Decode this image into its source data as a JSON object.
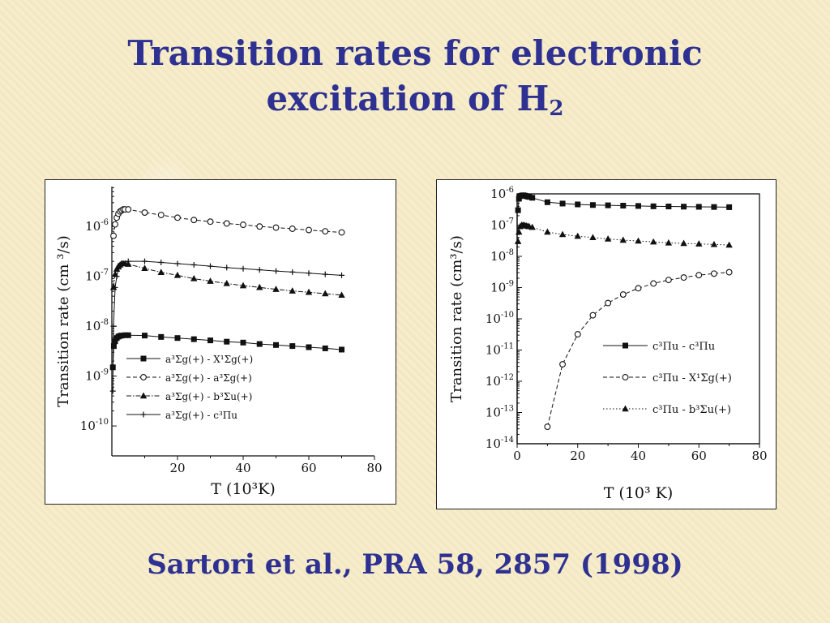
{
  "slide": {
    "title_line1": "Transition rates for electronic",
    "title_line2_main": "excitation of H",
    "title_line2_sub": "2",
    "citation": "Sartori et al., PRA 58, 2857 (1998)"
  },
  "colors": {
    "title": "#2e3192",
    "background": "#f6ecc9",
    "ink": "#111111"
  },
  "chart_data": [
    {
      "type": "line",
      "xlabel": "T  (10³K)",
      "ylabel": "Transition rate (cm ³/s)",
      "xlim": [
        0,
        80
      ],
      "ylim_log10": [
        -10.6,
        -5.2
      ],
      "yscale": "log",
      "x_ticks": [
        "20",
        "40",
        "60",
        "80"
      ],
      "y_ticks": [
        "10-10",
        "10-9",
        "10-8",
        "10-7",
        "10-6"
      ],
      "legend_position": "bottom-right",
      "series": [
        {
          "name": "a³Σg(+) - X¹Σg(+)",
          "marker": "square",
          "line": "solid",
          "x": [
            0.3,
            0.6,
            1,
            1.5,
            2,
            2.5,
            3,
            4,
            5,
            10,
            15,
            20,
            25,
            30,
            35,
            40,
            45,
            50,
            55,
            60,
            65,
            70
          ],
          "y": [
            1.5e-09,
            4e-09,
            5e-09,
            5.8e-09,
            6.2e-09,
            6.4e-09,
            6.5e-09,
            6.6e-09,
            6.6e-09,
            6.5e-09,
            6.1e-09,
            5.8e-09,
            5.5e-09,
            5.2e-09,
            4.9e-09,
            4.7e-09,
            4.4e-09,
            4.2e-09,
            4e-09,
            3.8e-09,
            3.6e-09,
            3.4e-09
          ]
        },
        {
          "name": "a³Σg(+) - a³Σg(+)",
          "marker": "circle",
          "line": "dashed",
          "x": [
            0.5,
            1,
            1.5,
            2,
            2.5,
            3,
            3.5,
            4,
            5,
            10,
            15,
            20,
            25,
            30,
            35,
            40,
            45,
            50,
            55,
            60,
            65,
            70
          ],
          "y": [
            6.5e-07,
            1.1e-06,
            1.5e-06,
            1.8e-06,
            2e-06,
            2.1e-06,
            2.2e-06,
            2.2e-06,
            2.2e-06,
            1.9e-06,
            1.7e-06,
            1.5e-06,
            1.35e-06,
            1.25e-06,
            1.15e-06,
            1.08e-06,
            1e-06,
            9.5e-07,
            9e-07,
            8.5e-07,
            8e-07,
            7.6e-07
          ]
        },
        {
          "name": "a³Σg(+) - b³Σu(+)",
          "marker": "triangle",
          "line": "dash-dot",
          "x": [
            0.5,
            1,
            1.5,
            2,
            2.5,
            3,
            3.5,
            4,
            5,
            10,
            15,
            20,
            25,
            30,
            35,
            40,
            45,
            50,
            55,
            60,
            65,
            70
          ],
          "y": [
            6e-08,
            1.1e-07,
            1.4e-07,
            1.6e-07,
            1.7e-07,
            1.8e-07,
            1.8e-07,
            1.8e-07,
            1.75e-07,
            1.45e-07,
            1.2e-07,
            1.05e-07,
            9e-08,
            8e-08,
            7.2e-08,
            6.5e-08,
            6e-08,
            5.5e-08,
            5.1e-08,
            4.8e-08,
            4.5e-08,
            4.2e-08
          ]
        },
        {
          "name": "a³Σg(+) - c³Πu",
          "marker": "plus",
          "line": "solid",
          "x": [
            0.3,
            0.5,
            1,
            1.5,
            2,
            3,
            5,
            10,
            15,
            20,
            25,
            30,
            35,
            40,
            45,
            50,
            55,
            60,
            65,
            70
          ],
          "y": [
            5e-10,
            1e-08,
            6e-08,
            1e-07,
            1.4e-07,
            1.8e-07,
            2e-07,
            2e-07,
            1.9e-07,
            1.8e-07,
            1.7e-07,
            1.6e-07,
            1.5e-07,
            1.42e-07,
            1.35e-07,
            1.28e-07,
            1.22e-07,
            1.16e-07,
            1.1e-07,
            1.05e-07
          ]
        }
      ]
    },
    {
      "type": "line",
      "xlabel": "T (10³ K)",
      "ylabel": "Transition rate (cm³/s)",
      "xlim": [
        0,
        80
      ],
      "ylim_log10": [
        -14,
        -6
      ],
      "yscale": "log",
      "x_ticks": [
        "0",
        "20",
        "40",
        "60",
        "80"
      ],
      "y_ticks": [
        "10-14",
        "10-13",
        "10-12",
        "10-11",
        "10-10",
        "10-9",
        "10-8",
        "10-7",
        "10-6"
      ],
      "legend_position": "center-right",
      "series": [
        {
          "name": "c³Πu - c³Πu",
          "marker": "square",
          "line": "solid",
          "x": [
            0.3,
            0.6,
            1,
            1.5,
            2,
            2.5,
            3,
            3.5,
            4,
            5,
            10,
            15,
            20,
            25,
            30,
            35,
            40,
            45,
            50,
            55,
            60,
            65,
            70
          ],
          "y": [
            3e-07,
            7e-07,
            8.5e-07,
            8.8e-07,
            9e-07,
            8.8e-07,
            8.5e-07,
            8.2e-07,
            8e-07,
            7.5e-07,
            5.4e-07,
            4.9e-07,
            4.6e-07,
            4.4e-07,
            4.3e-07,
            4.2e-07,
            4.1e-07,
            4e-07,
            3.95e-07,
            3.9e-07,
            3.85e-07,
            3.8e-07,
            3.75e-07
          ]
        },
        {
          "name": "c³Πu - X¹Σg(+)",
          "marker": "circle",
          "line": "dashed",
          "x": [
            10,
            15,
            20,
            25,
            30,
            35,
            40,
            45,
            50,
            55,
            60,
            65,
            70
          ],
          "y": [
            3.5e-14,
            3.5e-12,
            3.2e-11,
            1.3e-10,
            3.2e-10,
            6e-10,
            9.5e-10,
            1.35e-09,
            1.75e-09,
            2.1e-09,
            2.5e-09,
            2.8e-09,
            3.1e-09
          ]
        },
        {
          "name": "c³Πu - b³Σu(+)",
          "marker": "triangle",
          "line": "dotted",
          "x": [
            0.3,
            0.6,
            1,
            1.5,
            2,
            2.5,
            3,
            3.5,
            4,
            5,
            10,
            15,
            20,
            25,
            30,
            35,
            40,
            45,
            50,
            55,
            60,
            65,
            70
          ],
          "y": [
            3e-08,
            6e-08,
            9e-08,
            1e-07,
            1e-07,
            9.8e-08,
            9.5e-08,
            9.2e-08,
            9e-08,
            8.5e-08,
            6e-08,
            5e-08,
            4.4e-08,
            4e-08,
            3.6e-08,
            3.3e-08,
            3.1e-08,
            2.9e-08,
            2.7e-08,
            2.6e-08,
            2.5e-08,
            2.4e-08,
            2.3e-08
          ]
        }
      ]
    }
  ]
}
